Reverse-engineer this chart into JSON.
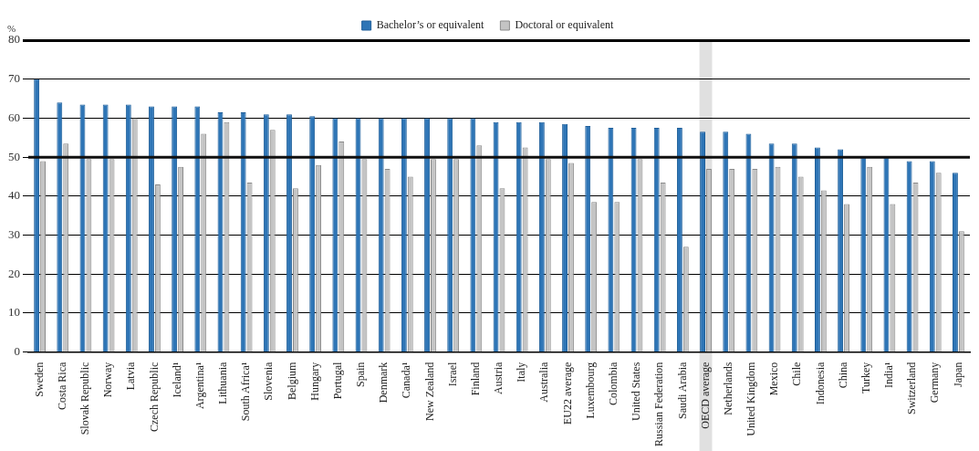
{
  "chart_data": {
    "type": "bar",
    "ylabel": "%",
    "categories": [
      "Sweden",
      "Costa Rica",
      "Slovak Republic",
      "Norway",
      "Latvia",
      "Czech Republic",
      "Iceland¹",
      "Argentina¹",
      "Lithuania",
      "South Africa¹",
      "Slovenia",
      "Belgium",
      "Hungary",
      "Portugal",
      "Spain",
      "Denmark",
      "Canada¹",
      "New Zealand",
      "Israel",
      "Finland",
      "Austria",
      "Italy",
      "Australia",
      "EU22 average",
      "Luxembourg",
      "Colombia",
      "United States",
      "Russian Federation",
      "Saudi Arabia",
      "OECD average",
      "Netherlands",
      "United Kingdom",
      "Mexico",
      "Chile",
      "Indonesia",
      "China",
      "Turkey",
      "India¹",
      "Switzerland",
      "Germany",
      "Japan"
    ],
    "series": [
      {
        "name": "Bachelor’s or equivalent",
        "color": "#2e75b6",
        "values": [
          70,
          64,
          63.5,
          63.5,
          63.5,
          63,
          63,
          63,
          61.5,
          61.5,
          61,
          61,
          60.5,
          60,
          60,
          60,
          60,
          60,
          60,
          60,
          59,
          59,
          59,
          58.5,
          58,
          57.5,
          57.5,
          57.5,
          57.5,
          56.5,
          56.5,
          56,
          53.5,
          53.5,
          52.5,
          52,
          50,
          50,
          49,
          49,
          46
        ]
      },
      {
        "name": "Doctoral or equivalent",
        "color": "#c4c4c4",
        "values": [
          49,
          53.5,
          49.5,
          49.5,
          60,
          43,
          47.5,
          56,
          59,
          43.5,
          57,
          42,
          48,
          54,
          49.5,
          47,
          45,
          49.5,
          49.5,
          53,
          42,
          52.5,
          49.5,
          48.5,
          38.5,
          38.5,
          49.5,
          43.5,
          27,
          47,
          47,
          47,
          47.5,
          45,
          41.5,
          38,
          47.5,
          38,
          43.5,
          46,
          31
        ]
      }
    ],
    "ylim": [
      0,
      80
    ],
    "yticks": [
      0,
      10,
      20,
      30,
      40,
      50,
      60,
      70,
      80
    ],
    "grid": "y",
    "legend": "top",
    "ref_lines": [
      {
        "axis": "y",
        "value": 50,
        "color": "#111111"
      }
    ],
    "bands": [
      {
        "axis": "x",
        "from": "OECD average",
        "to": "OECD average",
        "color": "#e0e0e0"
      }
    ]
  }
}
